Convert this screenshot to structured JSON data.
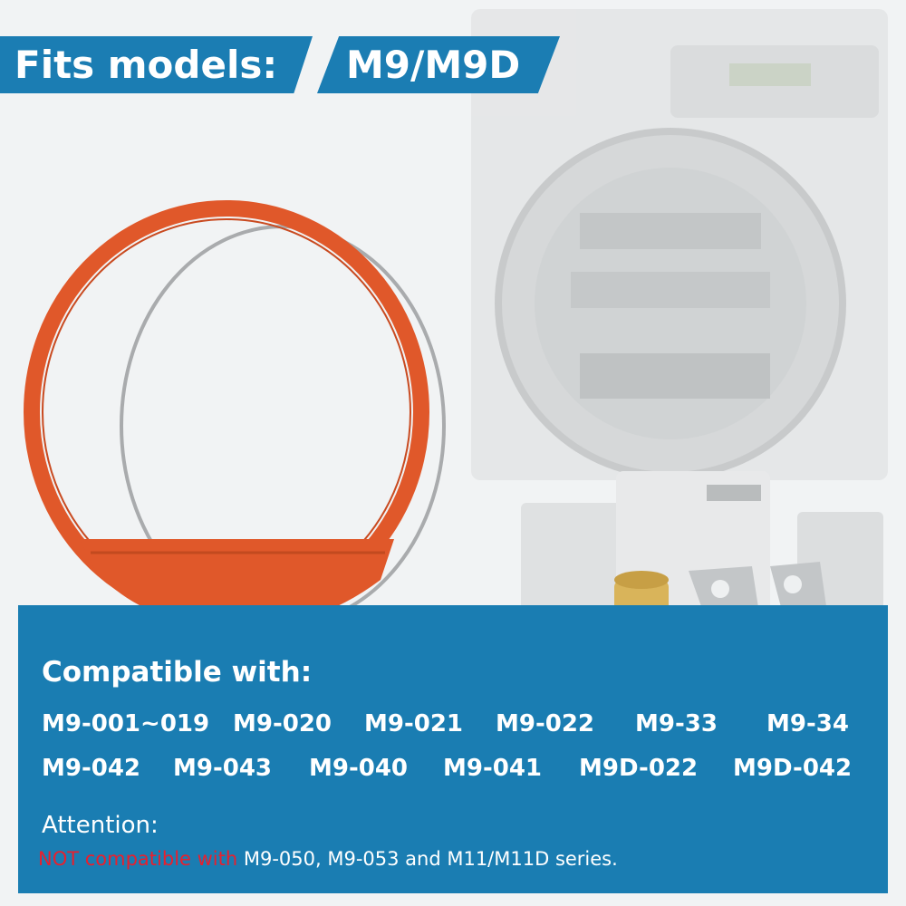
{
  "header": {
    "label": "Fits models:",
    "models": "M9/M9D"
  },
  "compatibility": {
    "title": "Compatible with:",
    "row1": [
      "M9-001~019",
      "M9-020",
      "M9-021",
      "M9-022",
      "M9-33",
      "M9-34"
    ],
    "row2": [
      "M9-042",
      "M9-043",
      "M9-040",
      "M9-041",
      "M9D-022",
      "M9D-042"
    ]
  },
  "attention": {
    "title": "Attention:",
    "warning": "NOT compatible with",
    "detail": " M9-050, M9-053 and M11/M11D series."
  },
  "colors": {
    "brand_blue": "#1b7db3",
    "gasket_orange": "#e0582a",
    "warning_red": "#e8202e"
  }
}
